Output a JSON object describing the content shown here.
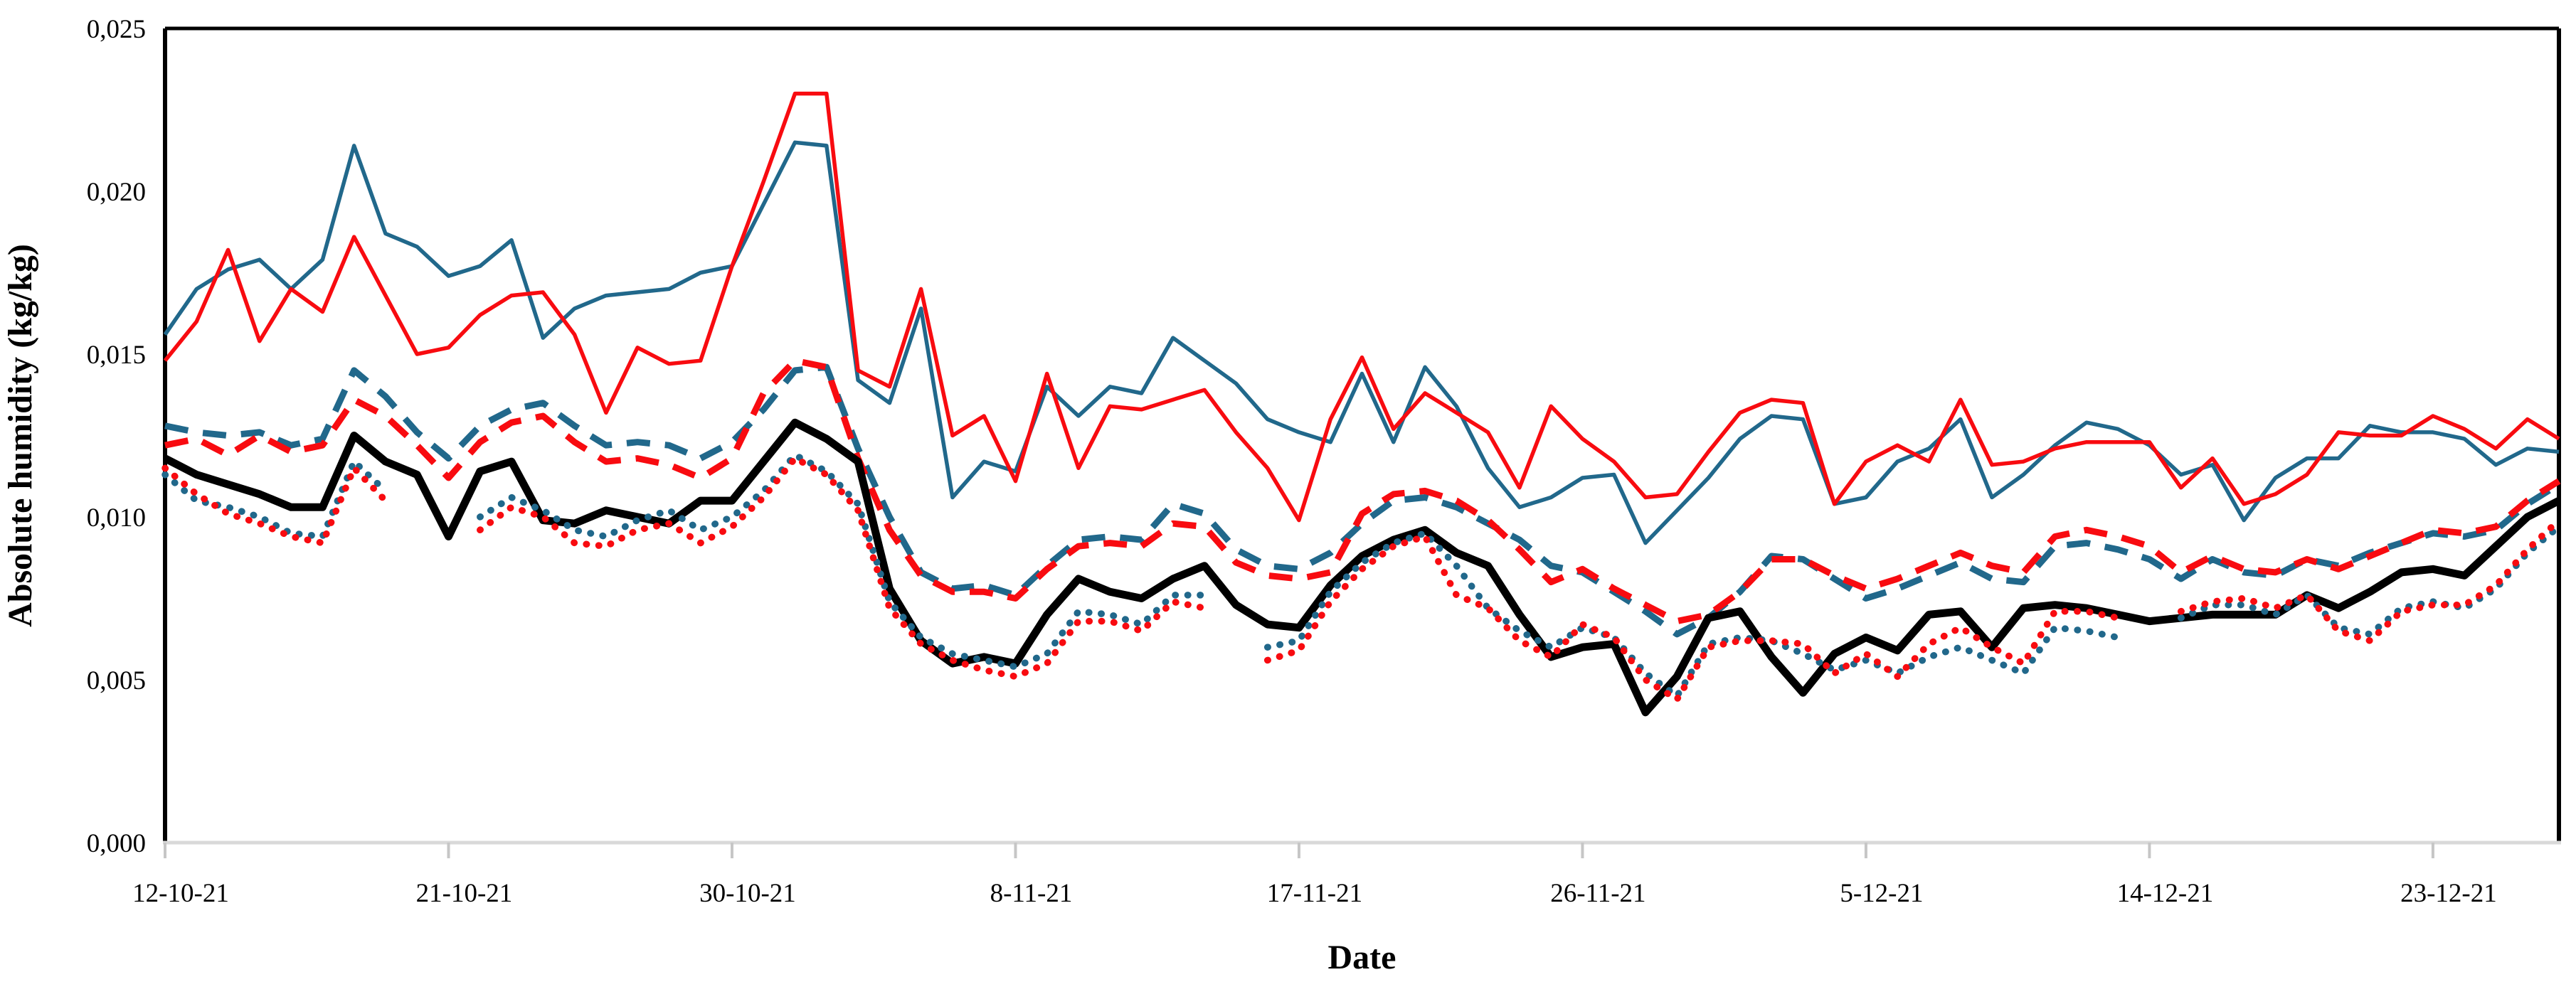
{
  "figure": {
    "y_axis_title": "Absolute humidity (kg/kg)",
    "x_axis_title": "Date",
    "background_color": "#ffffff",
    "plot_border_color": "#000000",
    "bottom_axis_color": "#d9d9d9",
    "tick_mark_color": "#c6c6c6"
  },
  "chart_data": {
    "type": "line",
    "title": "",
    "xlabel": "Date",
    "ylabel": "Absolute humidity (kg/kg)",
    "ylim": [
      0.0,
      0.025
    ],
    "y_ticks": [
      0.0,
      0.005,
      0.01,
      0.015,
      0.02,
      0.025
    ],
    "y_tick_labels": [
      "0,000",
      "0,005",
      "0,010",
      "0,015",
      "0,020",
      "0,025"
    ],
    "decimal_separator": ",",
    "grid": false,
    "legend": "none",
    "n_points": 77,
    "x_tick_labels": [
      "12-10-21",
      "21-10-21",
      "30-10-21",
      "8-11-21",
      "17-11-21",
      "26-11-21",
      "5-12-21",
      "14-12-21",
      "23-12-21"
    ],
    "x_tick_day_indices": [
      0,
      9,
      18,
      27,
      36,
      45,
      54,
      63,
      72
    ],
    "colors": {
      "blue": "#21688b",
      "red": "#f80b10",
      "black": "#000000"
    },
    "series": [
      {
        "name": "solid-blue",
        "style": "solid",
        "color": "#21688b",
        "width": 5.5,
        "values": [
          0.0156,
          0.017,
          0.0176,
          0.0179,
          0.017,
          0.0179,
          0.0214,
          0.0187,
          0.0183,
          0.0174,
          0.0177,
          0.0185,
          0.0155,
          0.0164,
          0.0168,
          0.0169,
          0.017,
          0.0175,
          0.0177,
          0.0196,
          0.0215,
          0.0214,
          0.0142,
          0.0135,
          0.0164,
          0.0106,
          0.0117,
          0.0114,
          0.014,
          0.0131,
          0.014,
          0.0138,
          0.0155,
          0.0148,
          0.0141,
          0.013,
          0.0126,
          0.0123,
          0.0144,
          0.0123,
          0.0146,
          0.0134,
          0.0115,
          0.0103,
          0.0106,
          0.0112,
          0.0113,
          0.0092,
          0.0102,
          0.0112,
          0.0124,
          0.0131,
          0.013,
          0.0104,
          0.0106,
          0.0117,
          0.0121,
          0.013,
          0.0106,
          0.0113,
          0.0122,
          0.0129,
          0.0127,
          0.0122,
          0.0113,
          0.0116,
          0.0099,
          0.0112,
          0.0118,
          0.0118,
          0.0128,
          0.0126,
          0.0126,
          0.0124,
          0.0116,
          0.0121,
          0.012
        ]
      },
      {
        "name": "solid-red",
        "style": "solid",
        "color": "#f80b10",
        "width": 5.5,
        "values": [
          0.0148,
          0.016,
          0.0182,
          0.0154,
          0.017,
          0.0163,
          0.0186,
          0.0168,
          0.015,
          0.0152,
          0.0162,
          0.0168,
          0.0169,
          0.0156,
          0.0132,
          0.0152,
          0.0147,
          0.0148,
          0.0177,
          0.0203,
          0.023,
          0.023,
          0.0145,
          0.014,
          0.017,
          0.0125,
          0.0131,
          0.0111,
          0.0144,
          0.0115,
          0.0134,
          0.0133,
          0.0136,
          0.0139,
          0.0126,
          0.0115,
          0.0099,
          0.013,
          0.0149,
          0.0127,
          0.0138,
          0.0132,
          0.0126,
          0.0109,
          0.0134,
          0.0124,
          0.0117,
          0.0106,
          0.0107,
          0.012,
          0.0132,
          0.0136,
          0.0135,
          0.0104,
          0.0117,
          0.0122,
          0.0117,
          0.0136,
          0.0116,
          0.0117,
          0.0121,
          0.0123,
          0.0123,
          0.0123,
          0.0109,
          0.0118,
          0.0104,
          0.0107,
          0.0113,
          0.0126,
          0.0125,
          0.0125,
          0.0131,
          0.0127,
          0.0121,
          0.013,
          0.0124
        ]
      },
      {
        "name": "dashed-blue",
        "style": "dashed",
        "color": "#21688b",
        "width": 9,
        "values": [
          0.0128,
          0.0126,
          0.0125,
          0.0126,
          0.0122,
          0.0124,
          0.0145,
          0.0137,
          0.0126,
          0.0118,
          0.0128,
          0.0133,
          0.0135,
          0.0128,
          0.0122,
          0.0123,
          0.0122,
          0.0118,
          0.0123,
          0.0133,
          0.0145,
          0.0146,
          0.0121,
          0.01,
          0.0083,
          0.0078,
          0.0079,
          0.0076,
          0.0085,
          0.0093,
          0.0094,
          0.0093,
          0.0104,
          0.0101,
          0.009,
          0.0085,
          0.0084,
          0.0089,
          0.0098,
          0.0105,
          0.0106,
          0.0103,
          0.0098,
          0.0093,
          0.0085,
          0.0083,
          0.0077,
          0.0071,
          0.0064,
          0.0069,
          0.0077,
          0.0088,
          0.0087,
          0.0081,
          0.0075,
          0.0078,
          0.0082,
          0.0086,
          0.0081,
          0.008,
          0.0091,
          0.0092,
          0.009,
          0.0087,
          0.0081,
          0.0087,
          0.0083,
          0.0082,
          0.0087,
          0.0085,
          0.0089,
          0.0092,
          0.0095,
          0.0094,
          0.0096,
          0.0104,
          0.011
        ]
      },
      {
        "name": "dashed-red",
        "style": "dashed",
        "color": "#f80b10",
        "width": 9,
        "values": [
          0.0122,
          0.0124,
          0.0119,
          0.0125,
          0.012,
          0.0122,
          0.0136,
          0.0131,
          0.0122,
          0.0112,
          0.0123,
          0.0129,
          0.0131,
          0.0123,
          0.0117,
          0.0118,
          0.0116,
          0.0112,
          0.0118,
          0.0138,
          0.0148,
          0.0146,
          0.0118,
          0.0096,
          0.0082,
          0.0077,
          0.0077,
          0.0075,
          0.0084,
          0.0091,
          0.0092,
          0.0091,
          0.0098,
          0.0097,
          0.0086,
          0.0082,
          0.0081,
          0.0083,
          0.0101,
          0.0107,
          0.0108,
          0.0105,
          0.0099,
          0.009,
          0.008,
          0.0084,
          0.0078,
          0.0073,
          0.0068,
          0.007,
          0.0077,
          0.0087,
          0.0087,
          0.0082,
          0.0078,
          0.0081,
          0.0085,
          0.0089,
          0.0085,
          0.0083,
          0.0094,
          0.0096,
          0.0094,
          0.0091,
          0.0083,
          0.0088,
          0.0084,
          0.0083,
          0.0087,
          0.0084,
          0.0088,
          0.0092,
          0.0096,
          0.0095,
          0.0097,
          0.0105,
          0.0111
        ]
      },
      {
        "name": "solid-black-thick",
        "style": "solid",
        "color": "#000000",
        "width": 11,
        "values": [
          0.0118,
          0.0113,
          0.011,
          0.0107,
          0.0103,
          0.0103,
          0.0125,
          0.0117,
          0.0113,
          0.0094,
          0.0114,
          0.0117,
          0.0099,
          0.0098,
          0.0102,
          0.01,
          0.0098,
          0.0105,
          0.0105,
          0.0117,
          0.0129,
          0.0124,
          0.0117,
          0.0078,
          0.0062,
          0.0055,
          0.0057,
          0.0055,
          0.007,
          0.0081,
          0.0077,
          0.0075,
          0.0081,
          0.0085,
          0.0073,
          0.0067,
          0.0066,
          0.0079,
          0.0088,
          0.0093,
          0.0096,
          0.0089,
          0.0085,
          0.007,
          0.0057,
          0.006,
          0.0061,
          0.004,
          0.0051,
          0.0069,
          0.0071,
          0.0057,
          0.0046,
          0.0058,
          0.0063,
          0.0059,
          0.007,
          0.0071,
          0.006,
          0.0072,
          0.0073,
          0.0072,
          0.007,
          0.0068,
          0.0069,
          0.007,
          0.007,
          0.007,
          0.0076,
          0.0072,
          0.0077,
          0.0083,
          0.0084,
          0.0082,
          0.0091,
          0.01,
          0.0105
        ]
      },
      {
        "name": "dotted-blue",
        "style": "dotted",
        "color": "#21688b",
        "width": 9.5,
        "values": [
          0.0113,
          0.0105,
          0.0103,
          0.01,
          0.0095,
          0.0094,
          0.0117,
          0.0108,
          null,
          null,
          0.01,
          0.0106,
          0.0102,
          0.0096,
          0.0094,
          0.0099,
          0.0102,
          0.0096,
          0.01,
          0.0108,
          0.0119,
          0.0114,
          0.0104,
          0.0074,
          0.0063,
          0.0058,
          0.0056,
          0.0054,
          0.0058,
          0.0071,
          0.007,
          0.0067,
          0.0076,
          0.0076,
          null,
          0.006,
          0.0062,
          0.0077,
          0.0086,
          0.0092,
          0.0095,
          0.0085,
          0.0072,
          0.0065,
          0.006,
          0.0066,
          0.0063,
          0.0052,
          0.0045,
          0.0061,
          0.0063,
          0.0062,
          0.0058,
          0.0053,
          0.0056,
          0.0052,
          0.0057,
          0.006,
          0.0056,
          0.0052,
          0.0066,
          0.0065,
          0.0063,
          null,
          0.0069,
          0.0073,
          0.0073,
          0.007,
          0.0076,
          0.0066,
          0.0064,
          0.0072,
          0.0074,
          0.0072,
          0.0078,
          0.0089,
          0.0097
        ]
      },
      {
        "name": "dotted-red",
        "style": "dotted",
        "color": "#f80b10",
        "width": 9.5,
        "values": [
          0.0115,
          0.0107,
          0.0101,
          0.0098,
          0.0094,
          0.0092,
          0.0115,
          0.0105,
          null,
          null,
          0.0096,
          0.0103,
          0.01,
          0.0092,
          0.0091,
          0.0096,
          0.0098,
          0.0092,
          0.0097,
          0.0106,
          0.0118,
          0.0113,
          0.0102,
          0.0072,
          0.0061,
          0.0056,
          0.0053,
          0.0051,
          0.0055,
          0.0068,
          0.0068,
          0.0065,
          0.0074,
          0.0072,
          null,
          0.0056,
          0.0059,
          0.0074,
          0.0084,
          0.0091,
          0.0094,
          0.0076,
          0.0072,
          0.0062,
          0.0057,
          0.0067,
          0.0063,
          0.005,
          0.0044,
          0.006,
          0.0062,
          0.0062,
          0.0061,
          0.0052,
          0.0058,
          0.0051,
          0.0061,
          0.0066,
          0.006,
          0.0055,
          0.0071,
          0.0071,
          0.0069,
          null,
          0.0071,
          0.0074,
          0.0075,
          0.0072,
          0.0076,
          0.0065,
          0.0062,
          0.0071,
          0.0073,
          0.0073,
          0.0079,
          0.009,
          0.0099
        ]
      }
    ]
  }
}
